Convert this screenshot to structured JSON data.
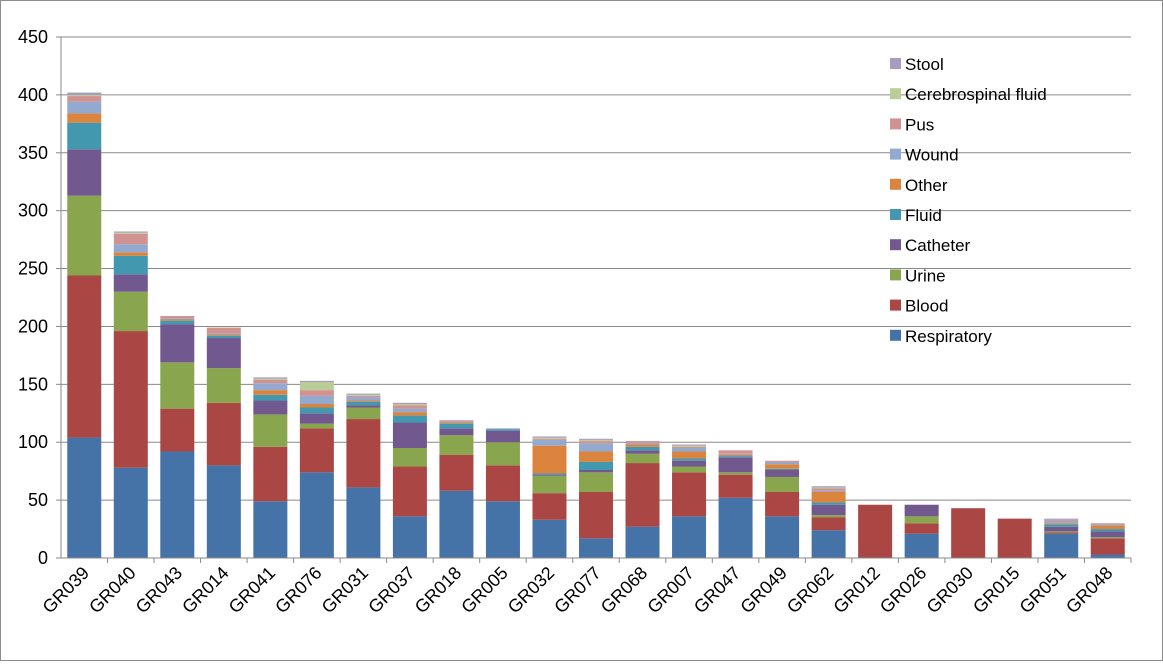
{
  "chart_data": {
    "type": "bar",
    "stacked": true,
    "title": "",
    "xlabel": "",
    "ylabel": "",
    "ylim": [
      0,
      450
    ],
    "ytick_step": 50,
    "yticks": [
      "0",
      "50",
      "100",
      "150",
      "200",
      "250",
      "300",
      "350",
      "400",
      "450"
    ],
    "grid": true,
    "legend_position": "top-right",
    "categories": [
      "GR039",
      "GR040",
      "GR043",
      "GR014",
      "GR041",
      "GR076",
      "GR031",
      "GR037",
      "GR018",
      "GR005",
      "GR032",
      "GR077",
      "GR068",
      "GR007",
      "GR047",
      "GR049",
      "GR062",
      "GR012",
      "GR026",
      "GR030",
      "GR015",
      "GR051",
      "GR048"
    ],
    "series": [
      {
        "name": "Respiratory",
        "color": "#4572a7",
        "values": [
          104,
          78,
          92,
          80,
          49,
          74,
          61,
          36,
          58,
          49,
          33,
          17,
          27,
          36,
          52,
          36,
          24,
          0,
          21,
          0,
          0,
          21,
          3
        ]
      },
      {
        "name": "Blood",
        "color": "#aa4643",
        "values": [
          140,
          118,
          37,
          54,
          47,
          38,
          59,
          43,
          31,
          31,
          23,
          40,
          55,
          38,
          20,
          21,
          11,
          46,
          9,
          43,
          34,
          1,
          14
        ]
      },
      {
        "name": "Urine",
        "color": "#89a54e",
        "values": [
          69,
          34,
          40,
          30,
          28,
          4,
          10,
          16,
          17,
          20,
          15,
          17,
          8,
          5,
          2,
          13,
          2,
          0,
          6,
          0,
          0,
          1,
          1
        ]
      },
      {
        "name": "Catheter",
        "color": "#71588f",
        "values": [
          40,
          15,
          33,
          26,
          12,
          9,
          2,
          22,
          6,
          10,
          1,
          2,
          3,
          5,
          13,
          6,
          9,
          0,
          10,
          0,
          0,
          4,
          5
        ]
      },
      {
        "name": "Fluid",
        "color": "#4198af",
        "values": [
          23,
          16,
          3,
          2,
          5,
          5,
          3,
          6,
          4,
          1,
          1,
          7,
          3,
          2,
          1,
          1,
          2,
          0,
          0,
          0,
          0,
          2,
          2
        ]
      },
      {
        "name": "Other",
        "color": "#db843d",
        "values": [
          8,
          3,
          1,
          1,
          4,
          3,
          1,
          3,
          1,
          0,
          24,
          9,
          2,
          6,
          1,
          4,
          9,
          0,
          0,
          0,
          0,
          1,
          3
        ]
      },
      {
        "name": "Wound",
        "color": "#93a9cf",
        "values": [
          10,
          7,
          1,
          1,
          6,
          7,
          3,
          3,
          1,
          1,
          5,
          7,
          1,
          3,
          1,
          2,
          1,
          0,
          0,
          0,
          0,
          2,
          1
        ]
      },
      {
        "name": "Pus",
        "color": "#d19392",
        "values": [
          5,
          9,
          2,
          5,
          3,
          5,
          1,
          3,
          1,
          0,
          1,
          2,
          2,
          1,
          3,
          1,
          2,
          0,
          0,
          0,
          0,
          1,
          1
        ]
      },
      {
        "name": "Cerebrospinal fluid",
        "color": "#b9cd96",
        "values": [
          1,
          1,
          0,
          0,
          1,
          7,
          1,
          1,
          0,
          0,
          1,
          1,
          0,
          1,
          0,
          0,
          1,
          0,
          0,
          0,
          0,
          0,
          0
        ]
      },
      {
        "name": "Stool",
        "color": "#a99bbd",
        "values": [
          2,
          1,
          0,
          0,
          1,
          1,
          1,
          1,
          0,
          0,
          1,
          1,
          0,
          1,
          0,
          0,
          1,
          0,
          0,
          0,
          0,
          1,
          0
        ]
      }
    ]
  }
}
